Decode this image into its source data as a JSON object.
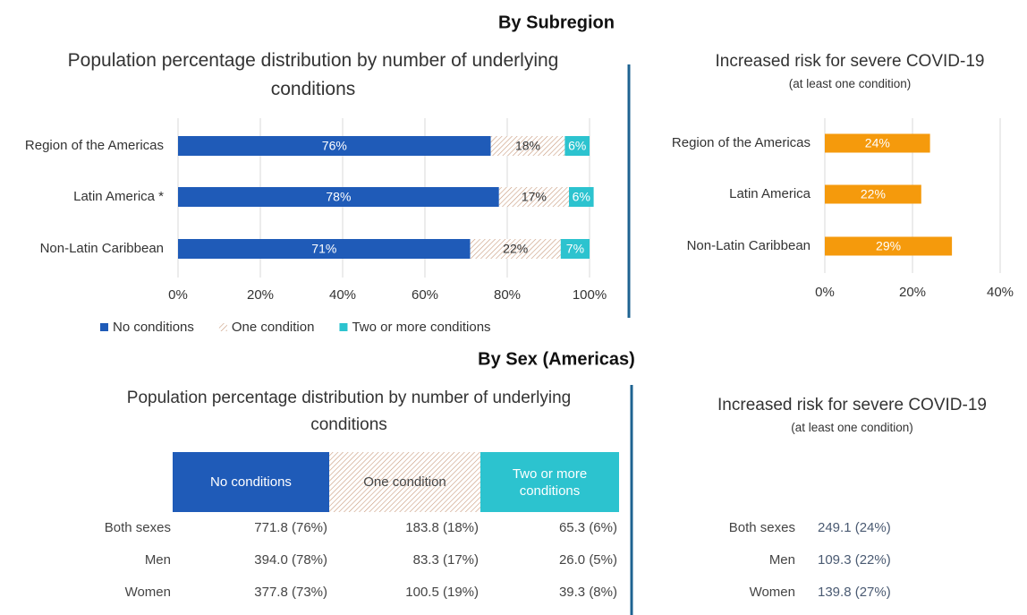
{
  "sections": [
    "By Subregion",
    "By Sex (Americas)"
  ],
  "chart_data": [
    {
      "type": "bar",
      "orientation": "horizontal",
      "stacked": true,
      "title": "Population percentage distribution by number of underlying conditions",
      "categories": [
        "Region of the Americas",
        "Latin America *",
        "Non-Latin Caribbean"
      ],
      "series": [
        {
          "name": "No conditions",
          "color": "#1f5bb8",
          "values": [
            76,
            78,
            71
          ],
          "value_labels": [
            "76%",
            "78%",
            "71%"
          ]
        },
        {
          "name": "One condition",
          "color": "#c89a7c",
          "pattern": "hatch",
          "values": [
            18,
            17,
            22
          ],
          "value_labels": [
            "18%",
            "17%",
            "22%"
          ]
        },
        {
          "name": "Two or more conditions",
          "color": "#2cc3cf",
          "values": [
            6,
            6,
            7
          ],
          "value_labels": [
            "6%",
            "6%",
            "7%"
          ]
        }
      ],
      "xlim": [
        0,
        100
      ],
      "xticks": [
        {
          "value": 0,
          "label": "0%"
        },
        {
          "value": 20,
          "label": "20%"
        },
        {
          "value": 40,
          "label": "40%"
        },
        {
          "value": 60,
          "label": "60%"
        },
        {
          "value": 80,
          "label": "80%"
        },
        {
          "value": 100,
          "label": "100%"
        }
      ],
      "grid": true,
      "legend": "bottom"
    },
    {
      "type": "bar",
      "orientation": "horizontal",
      "title": "Increased risk for severe COVID-19",
      "subtitle": "(at least one condition)",
      "categories": [
        "Region of the Americas",
        "Latin America",
        "Non-Latin Caribbean"
      ],
      "values": [
        24,
        22,
        29
      ],
      "value_labels": [
        "24%",
        "22%",
        "29%"
      ],
      "color": "#f59a0c",
      "xlim": [
        0,
        40
      ],
      "xticks": [
        {
          "value": 0,
          "label": "0%"
        },
        {
          "value": 20,
          "label": "20%"
        },
        {
          "value": 40,
          "label": "40%"
        }
      ],
      "grid": true
    }
  ],
  "tables": [
    {
      "title": "Population percentage distribution by number of underlying conditions",
      "columns": [
        "No conditions",
        "One condition",
        "Two or more conditions"
      ],
      "rows": [
        [
          "Both sexes",
          "771.8 (76%)",
          "183.8 (18%)",
          "65.3 (6%)"
        ],
        [
          "Men",
          "394.0 (78%)",
          "83.3 (17%)",
          "26.0 (5%)"
        ],
        [
          "Women",
          "377.8 (73%)",
          "100.5 (19%)",
          "39.3 (8%)"
        ]
      ]
    },
    {
      "title": "Increased risk for severe COVID-19",
      "subtitle": "(at least one condition)",
      "rows": [
        [
          "Both sexes",
          "249.1 (24%)"
        ],
        [
          "Men",
          "109.3 (22%)"
        ],
        [
          "Women",
          "139.8 (27%)"
        ]
      ]
    }
  ]
}
